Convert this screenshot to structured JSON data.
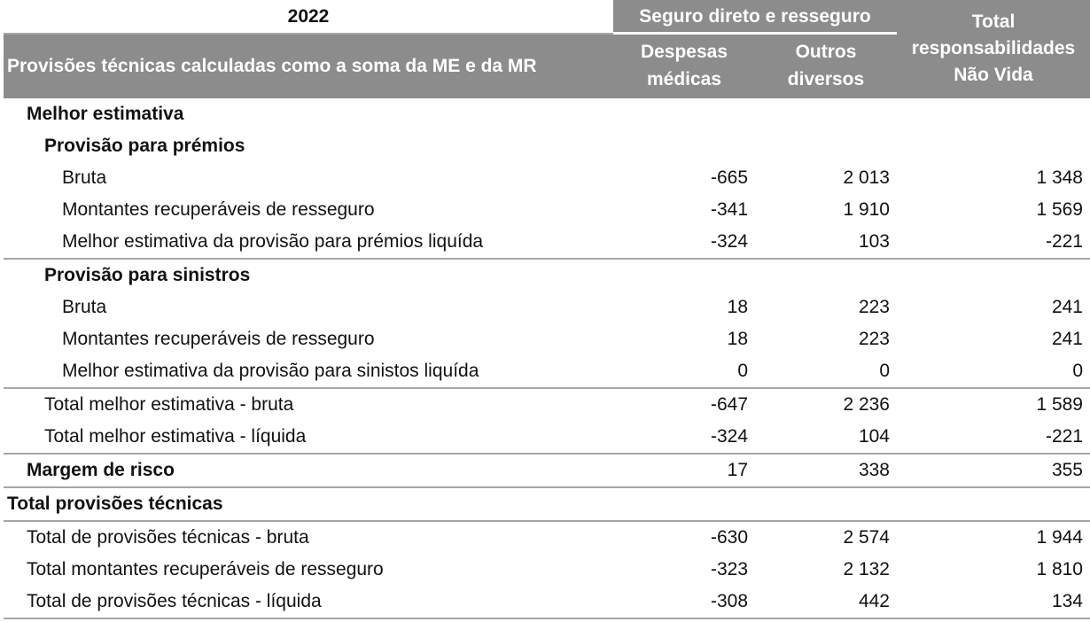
{
  "header": {
    "year": "2022",
    "group": "Seguro direto e resseguro",
    "total_line1": "Total",
    "total_line2": "responsabilidades",
    "total_line3": "Não Vida",
    "row_label": "Provisões técnicas calculadas como a soma da ME e da MR",
    "col1_line1": "Despesas",
    "col1_line2": "médicas",
    "col2_line1": "Outros",
    "col2_line2": "diversos"
  },
  "rows": [
    {
      "label": "Melhor estimativa"
    },
    {
      "label": "Provisão para prémios"
    },
    {
      "label": "Bruta",
      "v1": "-665",
      "v2": "2 013",
      "v3": "1 348"
    },
    {
      "label": "Montantes recuperáveis de resseguro",
      "v1": "-341",
      "v2": "1 910",
      "v3": "1 569"
    },
    {
      "label": "Melhor estimativa da provisão para prémios liquída",
      "v1": "-324",
      "v2": "103",
      "v3": "-221"
    },
    {
      "label": "Provisão para sinistros"
    },
    {
      "label": "Bruta",
      "v1": "18",
      "v2": "223",
      "v3": "241"
    },
    {
      "label": "Montantes recuperáveis de resseguro",
      "v1": "18",
      "v2": "223",
      "v3": "241"
    },
    {
      "label": "Melhor estimativa da provisão para sinistos liquída",
      "v1": "0",
      "v2": "0",
      "v3": "0"
    },
    {
      "label": "Total melhor estimativa - bruta",
      "v1": "-647",
      "v2": "2 236",
      "v3": "1 589"
    },
    {
      "label": "Total melhor estimativa - líquida",
      "v1": "-324",
      "v2": "104",
      "v3": "-221"
    },
    {
      "label": "Margem de risco",
      "v1": "17",
      "v2": "338",
      "v3": "355"
    },
    {
      "label": "Total provisões técnicas"
    },
    {
      "label": "Total de provisões técnicas - bruta",
      "v1": "-630",
      "v2": "2 574",
      "v3": "1 944"
    },
    {
      "label": "Total montantes recuperáveis de resseguro",
      "v1": "-323",
      "v2": "2 132",
      "v3": "1 810"
    },
    {
      "label": "Total de provisões técnicas - líquida",
      "v1": "-308",
      "v2": "442",
      "v3": "134"
    }
  ]
}
